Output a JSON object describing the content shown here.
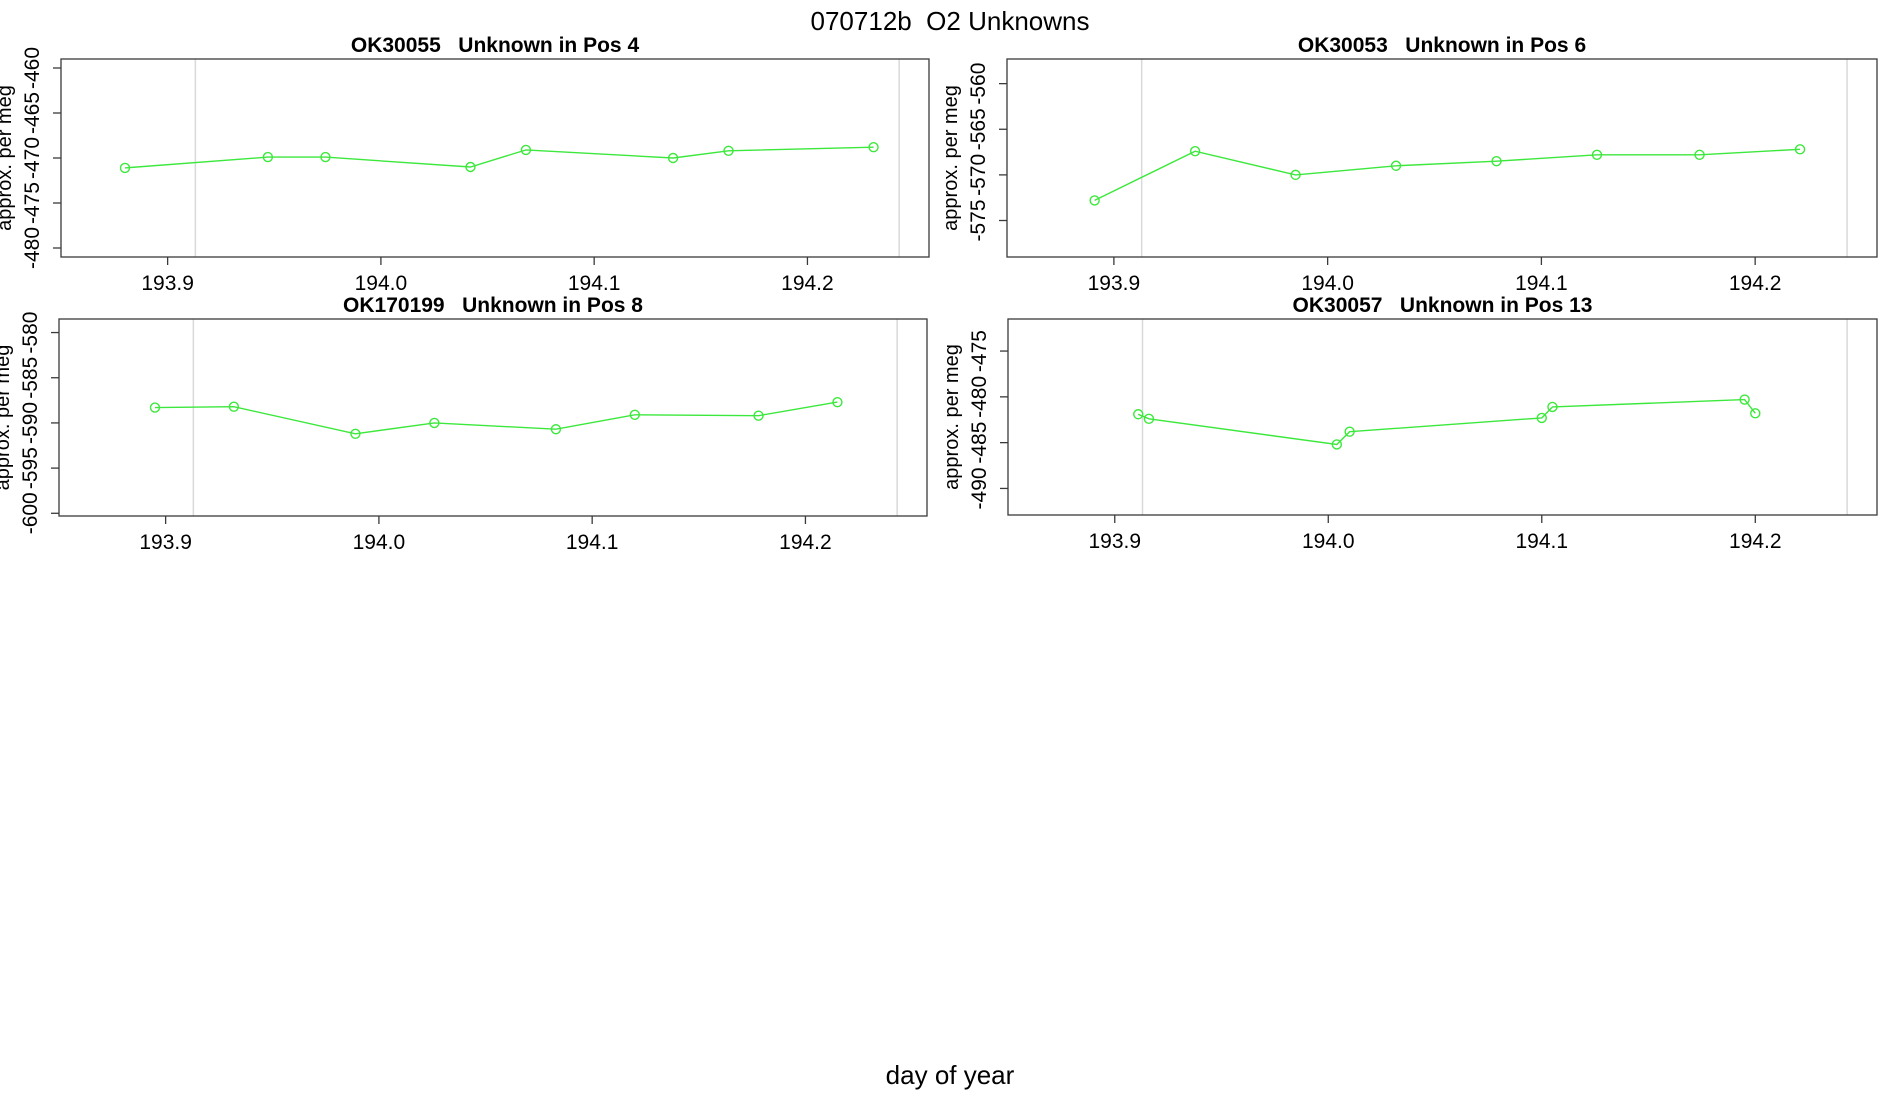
{
  "header": {
    "title": "070712b  O2 Unknowns"
  },
  "footer": {
    "xlabel": "day of year"
  },
  "styles": {
    "series_color": "#3ce83c",
    "vline_color": "#d9d9d9",
    "axis_color": "#3a3a3a",
    "text_color": "#000000",
    "background": "#ffffff"
  },
  "chart_data": [
    {
      "type": "line",
      "title": "OK30055   Unknown in Pos 4",
      "ylabel": "approx. per meg",
      "xlabel": "day of year",
      "xlim": [
        193.85,
        194.257
      ],
      "ylim": [
        -481.0,
        -459.0
      ],
      "xticks": [
        193.9,
        194.0,
        194.1,
        194.2
      ],
      "yticks": [
        -480,
        -475,
        -470,
        -465,
        -460
      ],
      "vlines": [
        193.913,
        194.243
      ],
      "grid": false,
      "legend_position": "none",
      "x": [
        193.88,
        193.947,
        193.974,
        194.042,
        194.068,
        194.137,
        194.163,
        194.231
      ],
      "y": [
        -471.1,
        -469.9,
        -469.9,
        -471.0,
        -469.1,
        -470.0,
        -469.2,
        -468.8
      ]
    },
    {
      "type": "line",
      "title": "OK30053   Unknown in Pos 6",
      "ylabel": "approx. per meg",
      "xlabel": "day of year",
      "xlim": [
        193.85,
        194.257
      ],
      "ylim": [
        -579.0,
        -557.3
      ],
      "xticks": [
        193.9,
        194.0,
        194.1,
        194.2
      ],
      "yticks": [
        -575,
        -570,
        -565,
        -560
      ],
      "vlines": [
        193.913,
        194.243
      ],
      "grid": false,
      "legend_position": "none",
      "x": [
        193.891,
        193.938,
        193.985,
        194.032,
        194.079,
        194.126,
        194.174,
        194.221
      ],
      "y": [
        -572.8,
        -567.4,
        -570.0,
        -569.0,
        -568.5,
        -567.8,
        -567.8,
        -567.2
      ]
    },
    {
      "type": "line",
      "title": "OK170199   Unknown in Pos 8",
      "ylabel": "approx. per meg",
      "xlabel": "day of year",
      "xlim": [
        193.85,
        194.257
      ],
      "ylim": [
        -600.3,
        -578.5
      ],
      "xticks": [
        193.9,
        194.0,
        194.1,
        194.2
      ],
      "yticks": [
        -600,
        -595,
        -590,
        -585,
        -580
      ],
      "vlines": [
        193.913,
        194.243
      ],
      "grid": false,
      "legend_position": "none",
      "x": [
        193.895,
        193.932,
        193.989,
        194.026,
        194.083,
        194.12,
        194.178,
        194.215
      ],
      "y": [
        -588.3,
        -588.2,
        -591.2,
        -590.0,
        -590.7,
        -589.1,
        -589.2,
        -587.7
      ]
    },
    {
      "type": "line",
      "title": "OK30057   Unknown in Pos 13",
      "ylabel": "approx. per meg",
      "xlabel": "day of year",
      "xlim": [
        193.85,
        194.257
      ],
      "ylim": [
        -492.9,
        -471.5
      ],
      "xticks": [
        193.9,
        194.0,
        194.1,
        194.2
      ],
      "yticks": [
        -490,
        -485,
        -480,
        -475
      ],
      "vlines": [
        193.913,
        194.243
      ],
      "grid": false,
      "legend_position": "none",
      "x": [
        193.911,
        193.916,
        194.004,
        194.01,
        194.1,
        194.105,
        194.195,
        194.2
      ],
      "y": [
        -481.9,
        -482.4,
        -485.2,
        -483.8,
        -482.3,
        -481.1,
        -480.3,
        -481.8
      ]
    }
  ]
}
